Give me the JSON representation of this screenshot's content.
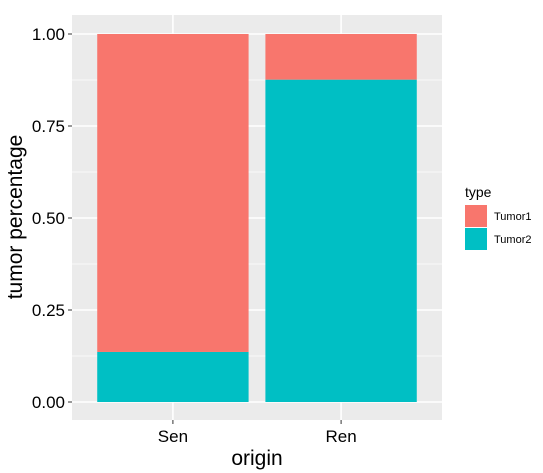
{
  "chart_data": {
    "type": "bar",
    "stacked": true,
    "title": "",
    "xlabel": "origin",
    "ylabel": "tumor percentage",
    "categories": [
      "Sen",
      "Ren"
    ],
    "series": [
      {
        "name": "Tumor2",
        "values": [
          0.136,
          0.876
        ],
        "color": "#00BFC4"
      },
      {
        "name": "Tumor1",
        "values": [
          0.864,
          0.124
        ],
        "color": "#F8766D"
      }
    ],
    "ylim": [
      0,
      1
    ],
    "yticks": [
      0,
      0.25,
      0.5,
      0.75,
      1
    ],
    "ytick_labels": [
      "0.00",
      "0.25",
      "0.50",
      "0.75",
      "1.00"
    ],
    "grid": true,
    "legend": {
      "title": "type",
      "placement": "right",
      "entries": [
        {
          "label": "Tumor1",
          "color": "#F8766D"
        },
        {
          "label": "Tumor2",
          "color": "#00BFC4"
        }
      ]
    },
    "panel_background": "#EBEBEB",
    "gridline_color": "#FFFFFF"
  }
}
